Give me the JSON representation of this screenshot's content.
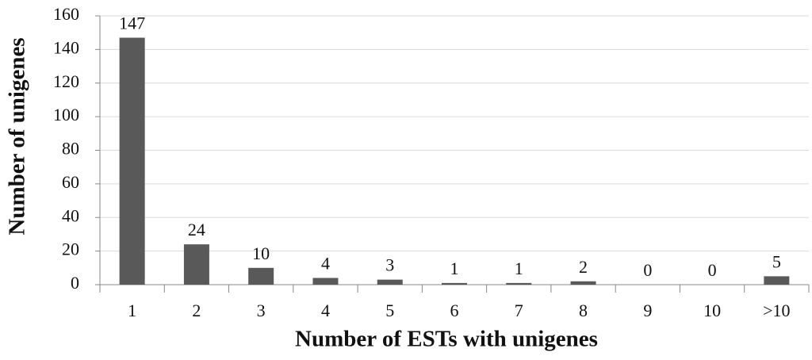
{
  "chart_data": {
    "type": "bar",
    "x_label": "Number of ESTs with unigenes",
    "y_label": "Number of unigenes",
    "categories": [
      "1",
      "2",
      "3",
      "4",
      "5",
      "6",
      "7",
      "8",
      "9",
      "10",
      ">10"
    ],
    "values": [
      147,
      24,
      10,
      4,
      3,
      1,
      1,
      2,
      0,
      0,
      5
    ],
    "color": "#595959",
    "ylim": [
      0,
      160
    ],
    "yticks": [
      0,
      20,
      40,
      60,
      80,
      100,
      120,
      140,
      160
    ],
    "grid": true
  }
}
